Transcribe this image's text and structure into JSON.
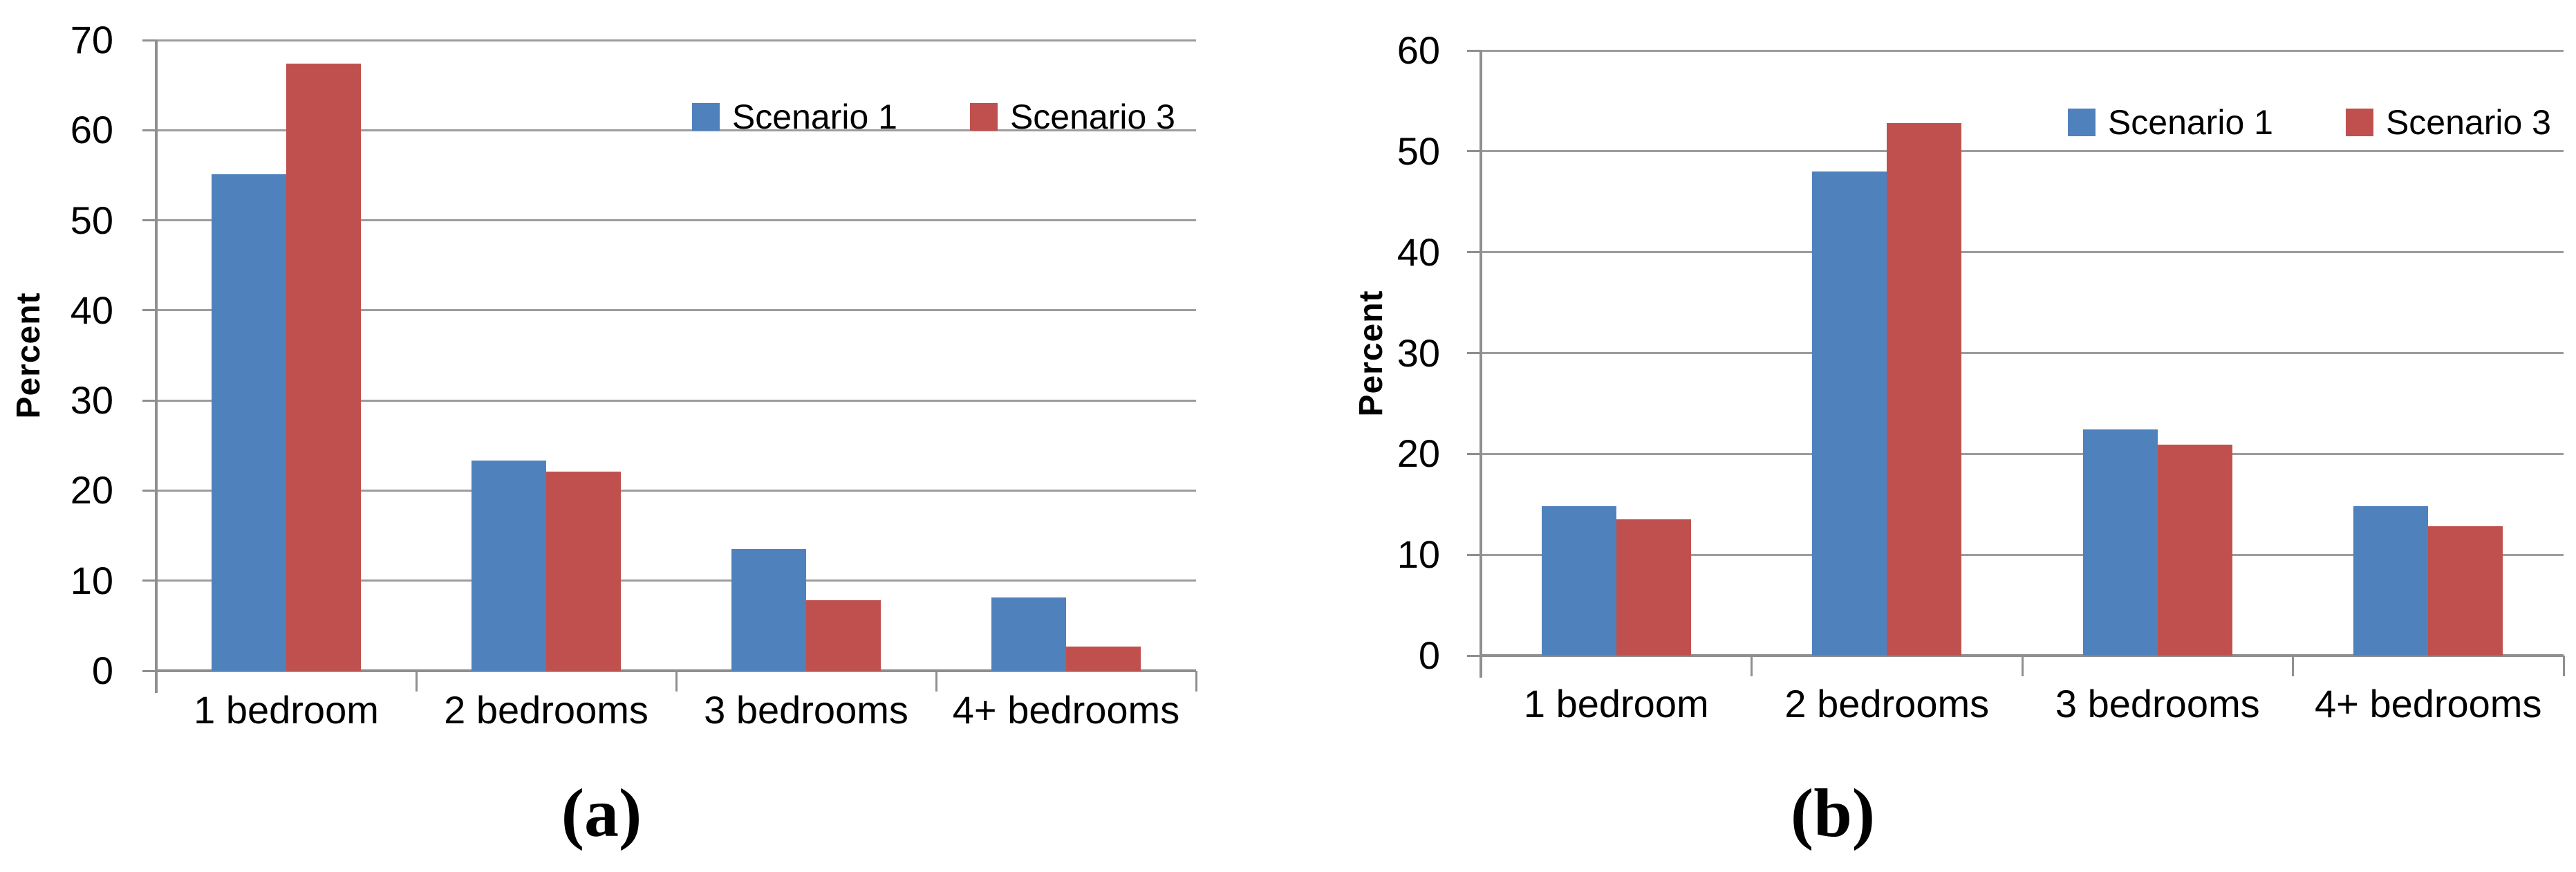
{
  "figure": {
    "background_color": "#FFFFFF",
    "gridline_color": "#9C9C9C",
    "axis_color": "#8F8F8F",
    "text_color": "#000000",
    "series_colors": {
      "scenario_1": "#4F81BD",
      "scenario_3": "#C0504D"
    }
  },
  "chart_data": [
    {
      "type": "bar",
      "panel": "a",
      "caption": "(a)",
      "title": "",
      "xlabel": "",
      "ylabel": "Percent",
      "ylim": [
        0,
        70
      ],
      "ystep": 10,
      "yticks": [
        0,
        10,
        20,
        30,
        40,
        50,
        60,
        70
      ],
      "grid": true,
      "legend_position": "top-right-inside",
      "legend": [
        "Scenario 1",
        "Scenario 3"
      ],
      "categories": [
        "1 bedroom",
        "2 bedrooms",
        "3 bedrooms",
        "4+ bedrooms"
      ],
      "series": [
        {
          "name": "Scenario 1",
          "color": "#4F81BD",
          "values": [
            55.1,
            23.3,
            13.5,
            8.1
          ]
        },
        {
          "name": "Scenario 3",
          "color": "#C0504D",
          "values": [
            67.4,
            22.1,
            7.8,
            2.7
          ]
        }
      ]
    },
    {
      "type": "bar",
      "panel": "b",
      "caption": "(b)",
      "title": "",
      "xlabel": "",
      "ylabel": "Percent",
      "ylim": [
        0,
        60
      ],
      "ystep": 10,
      "yticks": [
        0,
        10,
        20,
        30,
        40,
        50,
        60
      ],
      "grid": true,
      "legend_position": "top-right-inside",
      "legend": [
        "Scenario 1",
        "Scenario 3"
      ],
      "categories": [
        "1 bedroom",
        "2 bedrooms",
        "3 bedrooms",
        "4+ bedrooms"
      ],
      "series": [
        {
          "name": "Scenario 1",
          "color": "#4F81BD",
          "values": [
            14.8,
            48.0,
            22.4,
            14.8
          ]
        },
        {
          "name": "Scenario 3",
          "color": "#C0504D",
          "values": [
            13.5,
            52.8,
            20.9,
            12.8
          ]
        }
      ]
    }
  ]
}
